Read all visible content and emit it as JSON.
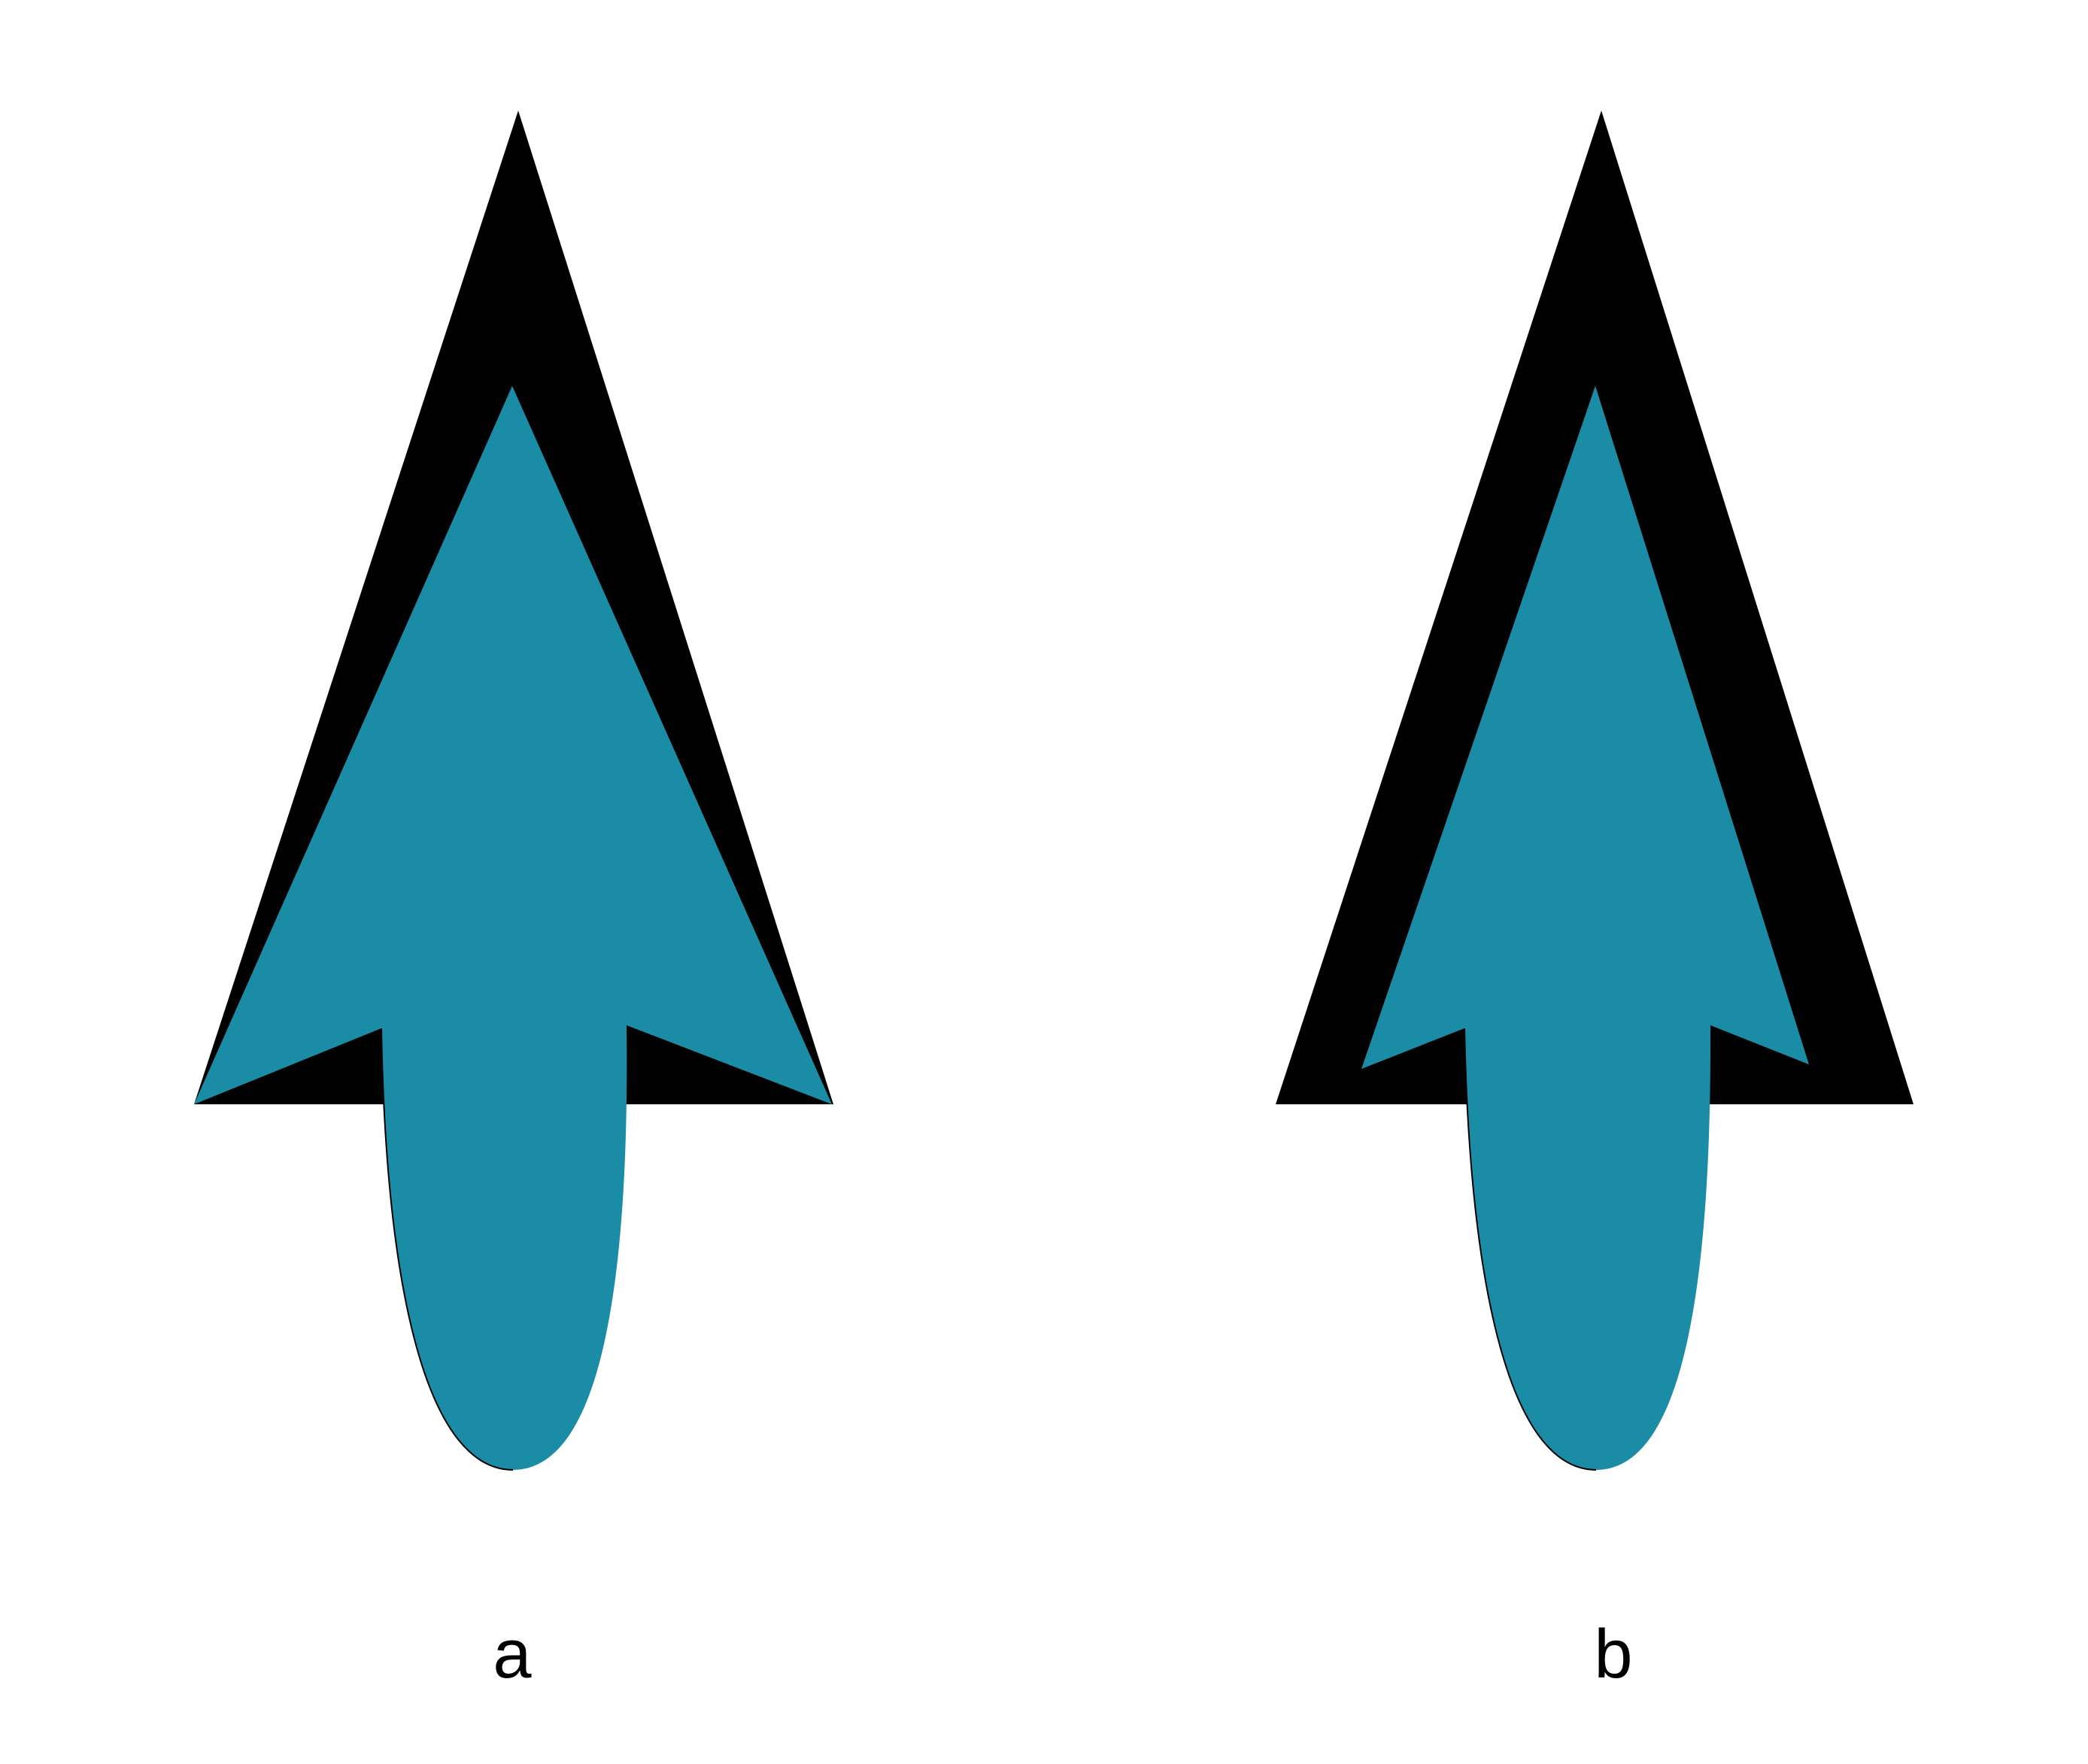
{
  "panels": [
    {
      "id": "a",
      "label": "a"
    },
    {
      "id": "b",
      "label": "b"
    }
  ],
  "colors": {
    "background": "#ffffff",
    "outer_arrow": "#000000",
    "inner_arrow": "#1a8ca5",
    "label_text": "#000000"
  }
}
